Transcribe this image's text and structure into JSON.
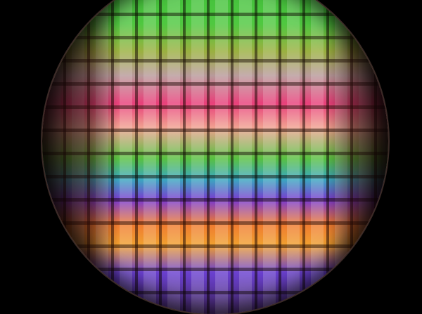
{
  "scene": {
    "subject": "wafer",
    "background_color": "#000000",
    "band_colors": [
      "#3fbf3a",
      "#4fc840",
      "#9ab040",
      "#b89a9a",
      "#e8407a",
      "#f0a090",
      "#58c040",
      "#3aa8c0",
      "#7a3ad0",
      "#f07a30",
      "#f0a030",
      "#6a40d0"
    ]
  }
}
